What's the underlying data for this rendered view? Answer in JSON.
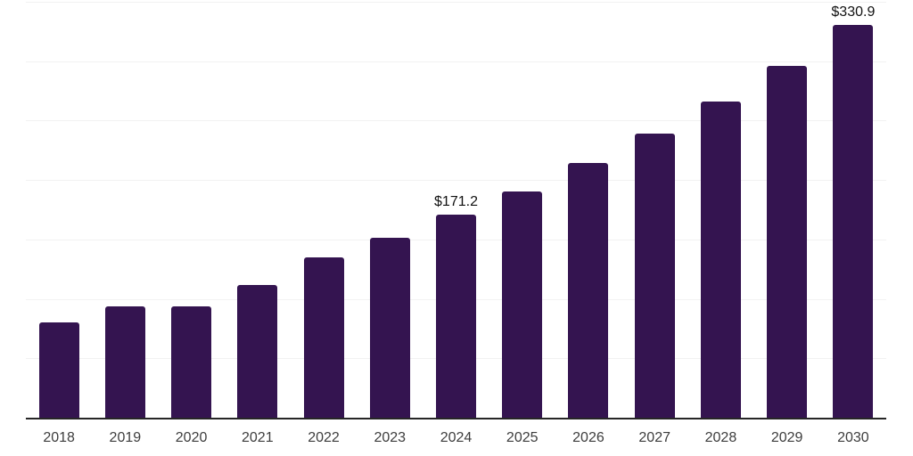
{
  "chart_data": {
    "type": "bar",
    "title": "",
    "xlabel": "",
    "ylabel": "",
    "categories": [
      "2018",
      "2019",
      "2020",
      "2021",
      "2022",
      "2023",
      "2024",
      "2025",
      "2026",
      "2027",
      "2028",
      "2029",
      "2030"
    ],
    "values": [
      80.7,
      93.7,
      93.7,
      112.0,
      135.1,
      151.5,
      171.2,
      191.0,
      214.8,
      239.4,
      266.2,
      296.7,
      330.9
    ],
    "value_labels": {
      "2024": "$171.2",
      "2030": "$330.9"
    },
    "ylim": [
      0,
      350
    ],
    "gridline_step": 50,
    "grid": "horizontal-only",
    "legend_position": "none",
    "y_axis_tick_labels_visible": false,
    "colors": {
      "bar": "#341450",
      "axis_line": "#262626",
      "gridline": "#f2f2f2",
      "tick_label": "#3d3d3d",
      "value_label": "#111111",
      "background": "#ffffff"
    }
  }
}
